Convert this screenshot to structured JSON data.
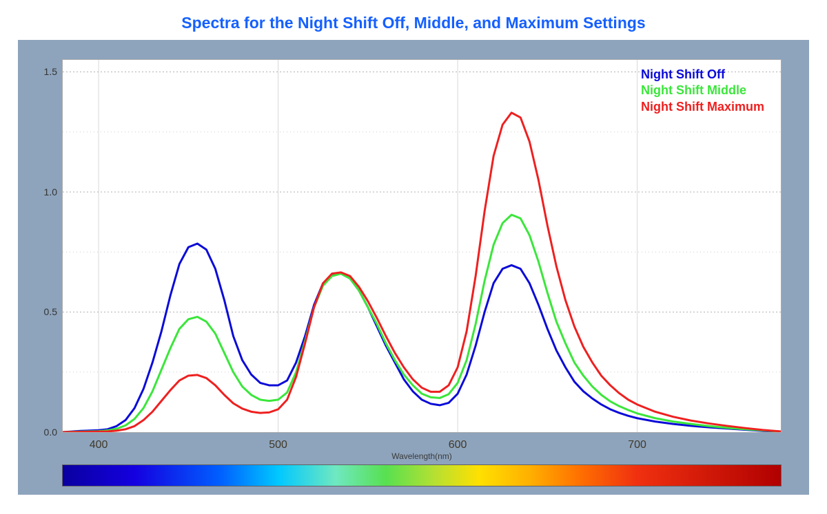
{
  "title": "Spectra for the Night Shift Off, Middle, and Maximum Settings",
  "title_color": "#1560ff",
  "title_fontsize": 23,
  "panel_bg": "#8ea4bd",
  "plot_bg": "#ffffff",
  "grid": {
    "major_color": "#b0b0b0",
    "major_dash": "2 3",
    "vline_color": "#d8d8d8",
    "border_color": "#aaaaaa"
  },
  "x_axis": {
    "label": "Wavelength(nm)",
    "min": 380,
    "max": 780,
    "ticks": [
      400,
      500,
      600,
      700
    ],
    "tick_fontsize": 16,
    "label_fontsize": 12
  },
  "y_axis": {
    "min": 0.0,
    "max": 1.55,
    "ticks": [
      0.0,
      0.5,
      1.0,
      1.5
    ],
    "tick_labels": [
      "0.0",
      "0.5",
      "1.0",
      "1.5"
    ],
    "tick_fontsize": 14
  },
  "legend": {
    "fontsize": 18,
    "items": [
      {
        "label": "Night Shift Off",
        "color": "#0b0bd8"
      },
      {
        "label": "Night Shift Middle",
        "color": "#3be63b"
      },
      {
        "label": "Night Shift Maximum",
        "color": "#ee2020"
      }
    ]
  },
  "series": [
    {
      "name": "Night Shift Off",
      "color": "#0b0bd8",
      "line_width": 3,
      "points": [
        [
          380,
          0.0
        ],
        [
          390,
          0.005
        ],
        [
          400,
          0.008
        ],
        [
          405,
          0.012
        ],
        [
          410,
          0.025
        ],
        [
          415,
          0.05
        ],
        [
          420,
          0.1
        ],
        [
          425,
          0.18
        ],
        [
          430,
          0.29
        ],
        [
          435,
          0.42
        ],
        [
          440,
          0.57
        ],
        [
          445,
          0.7
        ],
        [
          450,
          0.77
        ],
        [
          455,
          0.785
        ],
        [
          460,
          0.76
        ],
        [
          465,
          0.68
        ],
        [
          470,
          0.55
        ],
        [
          475,
          0.4
        ],
        [
          480,
          0.3
        ],
        [
          485,
          0.24
        ],
        [
          490,
          0.205
        ],
        [
          495,
          0.195
        ],
        [
          500,
          0.195
        ],
        [
          505,
          0.215
        ],
        [
          510,
          0.29
        ],
        [
          515,
          0.4
        ],
        [
          520,
          0.53
        ],
        [
          525,
          0.62
        ],
        [
          530,
          0.655
        ],
        [
          535,
          0.66
        ],
        [
          540,
          0.64
        ],
        [
          545,
          0.59
        ],
        [
          550,
          0.52
        ],
        [
          555,
          0.44
        ],
        [
          560,
          0.36
        ],
        [
          565,
          0.29
        ],
        [
          570,
          0.22
        ],
        [
          575,
          0.17
        ],
        [
          580,
          0.135
        ],
        [
          585,
          0.118
        ],
        [
          590,
          0.112
        ],
        [
          595,
          0.122
        ],
        [
          600,
          0.16
        ],
        [
          605,
          0.24
        ],
        [
          610,
          0.36
        ],
        [
          615,
          0.5
        ],
        [
          620,
          0.62
        ],
        [
          625,
          0.68
        ],
        [
          630,
          0.695
        ],
        [
          635,
          0.68
        ],
        [
          640,
          0.62
        ],
        [
          645,
          0.53
        ],
        [
          650,
          0.43
        ],
        [
          655,
          0.34
        ],
        [
          660,
          0.27
        ],
        [
          665,
          0.21
        ],
        [
          670,
          0.17
        ],
        [
          675,
          0.14
        ],
        [
          680,
          0.115
        ],
        [
          685,
          0.095
        ],
        [
          690,
          0.08
        ],
        [
          695,
          0.068
        ],
        [
          700,
          0.058
        ],
        [
          710,
          0.044
        ],
        [
          720,
          0.034
        ],
        [
          730,
          0.026
        ],
        [
          740,
          0.02
        ],
        [
          750,
          0.015
        ],
        [
          760,
          0.01
        ],
        [
          770,
          0.005
        ],
        [
          780,
          0.002
        ]
      ]
    },
    {
      "name": "Night Shift Middle",
      "color": "#3be63b",
      "line_width": 3,
      "points": [
        [
          380,
          0.0
        ],
        [
          390,
          0.002
        ],
        [
          400,
          0.004
        ],
        [
          405,
          0.007
        ],
        [
          410,
          0.014
        ],
        [
          415,
          0.028
        ],
        [
          420,
          0.055
        ],
        [
          425,
          0.1
        ],
        [
          430,
          0.17
        ],
        [
          435,
          0.26
        ],
        [
          440,
          0.35
        ],
        [
          445,
          0.43
        ],
        [
          450,
          0.47
        ],
        [
          455,
          0.48
        ],
        [
          460,
          0.46
        ],
        [
          465,
          0.41
        ],
        [
          470,
          0.33
        ],
        [
          475,
          0.25
        ],
        [
          480,
          0.19
        ],
        [
          485,
          0.155
        ],
        [
          490,
          0.135
        ],
        [
          495,
          0.13
        ],
        [
          500,
          0.135
        ],
        [
          505,
          0.165
        ],
        [
          510,
          0.25
        ],
        [
          515,
          0.38
        ],
        [
          520,
          0.52
        ],
        [
          525,
          0.61
        ],
        [
          530,
          0.65
        ],
        [
          535,
          0.66
        ],
        [
          540,
          0.64
        ],
        [
          545,
          0.59
        ],
        [
          550,
          0.52
        ],
        [
          555,
          0.45
        ],
        [
          560,
          0.37
        ],
        [
          565,
          0.3
        ],
        [
          570,
          0.24
        ],
        [
          575,
          0.195
        ],
        [
          580,
          0.16
        ],
        [
          585,
          0.145
        ],
        [
          590,
          0.142
        ],
        [
          595,
          0.158
        ],
        [
          600,
          0.205
        ],
        [
          605,
          0.3
        ],
        [
          610,
          0.45
        ],
        [
          615,
          0.63
        ],
        [
          620,
          0.78
        ],
        [
          625,
          0.87
        ],
        [
          630,
          0.905
        ],
        [
          635,
          0.89
        ],
        [
          640,
          0.82
        ],
        [
          645,
          0.71
        ],
        [
          650,
          0.58
        ],
        [
          655,
          0.46
        ],
        [
          660,
          0.37
        ],
        [
          665,
          0.29
        ],
        [
          670,
          0.235
        ],
        [
          675,
          0.19
        ],
        [
          680,
          0.155
        ],
        [
          685,
          0.128
        ],
        [
          690,
          0.108
        ],
        [
          695,
          0.092
        ],
        [
          700,
          0.078
        ],
        [
          710,
          0.058
        ],
        [
          720,
          0.044
        ],
        [
          730,
          0.034
        ],
        [
          740,
          0.025
        ],
        [
          750,
          0.018
        ],
        [
          760,
          0.012
        ],
        [
          770,
          0.007
        ],
        [
          780,
          0.003
        ]
      ]
    },
    {
      "name": "Night Shift Maximum",
      "color": "#ee2020",
      "line_width": 3,
      "points": [
        [
          380,
          0.0
        ],
        [
          390,
          0.001
        ],
        [
          400,
          0.002
        ],
        [
          405,
          0.003
        ],
        [
          410,
          0.006
        ],
        [
          415,
          0.012
        ],
        [
          420,
          0.025
        ],
        [
          425,
          0.05
        ],
        [
          430,
          0.085
        ],
        [
          435,
          0.13
        ],
        [
          440,
          0.175
        ],
        [
          445,
          0.215
        ],
        [
          450,
          0.235
        ],
        [
          455,
          0.238
        ],
        [
          460,
          0.225
        ],
        [
          465,
          0.195
        ],
        [
          470,
          0.155
        ],
        [
          475,
          0.12
        ],
        [
          480,
          0.098
        ],
        [
          485,
          0.085
        ],
        [
          490,
          0.08
        ],
        [
          495,
          0.082
        ],
        [
          500,
          0.095
        ],
        [
          505,
          0.135
        ],
        [
          510,
          0.23
        ],
        [
          515,
          0.37
        ],
        [
          520,
          0.52
        ],
        [
          525,
          0.62
        ],
        [
          530,
          0.66
        ],
        [
          535,
          0.665
        ],
        [
          540,
          0.65
        ],
        [
          545,
          0.605
        ],
        [
          550,
          0.545
        ],
        [
          555,
          0.475
        ],
        [
          560,
          0.4
        ],
        [
          565,
          0.33
        ],
        [
          570,
          0.27
        ],
        [
          575,
          0.22
        ],
        [
          580,
          0.185
        ],
        [
          585,
          0.168
        ],
        [
          590,
          0.168
        ],
        [
          595,
          0.195
        ],
        [
          600,
          0.27
        ],
        [
          605,
          0.42
        ],
        [
          610,
          0.65
        ],
        [
          615,
          0.92
        ],
        [
          620,
          1.15
        ],
        [
          625,
          1.28
        ],
        [
          630,
          1.33
        ],
        [
          635,
          1.31
        ],
        [
          640,
          1.21
        ],
        [
          645,
          1.05
        ],
        [
          650,
          0.86
        ],
        [
          655,
          0.69
        ],
        [
          660,
          0.55
        ],
        [
          665,
          0.44
        ],
        [
          670,
          0.355
        ],
        [
          675,
          0.29
        ],
        [
          680,
          0.235
        ],
        [
          685,
          0.195
        ],
        [
          690,
          0.162
        ],
        [
          695,
          0.135
        ],
        [
          700,
          0.115
        ],
        [
          710,
          0.085
        ],
        [
          720,
          0.064
        ],
        [
          730,
          0.048
        ],
        [
          740,
          0.036
        ],
        [
          750,
          0.026
        ],
        [
          760,
          0.017
        ],
        [
          770,
          0.009
        ],
        [
          780,
          0.003
        ]
      ]
    }
  ],
  "spectrum_bar": {
    "stops": [
      {
        "pct": 0,
        "color": "#0a00a0"
      },
      {
        "pct": 10,
        "color": "#1400e0"
      },
      {
        "pct": 22,
        "color": "#0060ff"
      },
      {
        "pct": 30,
        "color": "#00c8ff"
      },
      {
        "pct": 38,
        "color": "#6fe8c0"
      },
      {
        "pct": 45,
        "color": "#58e050"
      },
      {
        "pct": 52,
        "color": "#b8e030"
      },
      {
        "pct": 58,
        "color": "#ffe000"
      },
      {
        "pct": 65,
        "color": "#ffb000"
      },
      {
        "pct": 72,
        "color": "#ff7000"
      },
      {
        "pct": 80,
        "color": "#f03010"
      },
      {
        "pct": 90,
        "color": "#d01808"
      },
      {
        "pct": 100,
        "color": "#b00000"
      }
    ],
    "border_color": "#606060"
  }
}
